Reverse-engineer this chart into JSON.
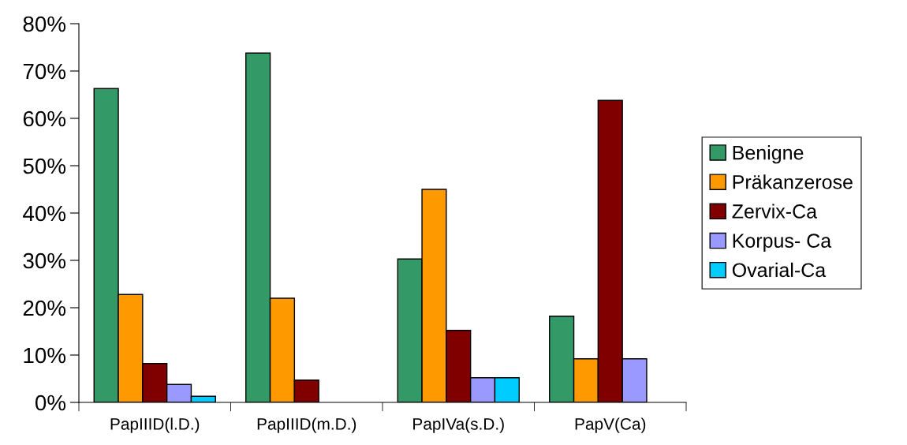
{
  "chart_data": {
    "type": "bar",
    "categories": [
      "PapIIID(l.D.)",
      "PapIIID(m.D.)",
      "PapIVa(s.D.)",
      "PapV(Ca)"
    ],
    "series": [
      {
        "name": "Benigne",
        "color": "#339966",
        "values": [
          66.3,
          73.8,
          30.3,
          18.2
        ]
      },
      {
        "name": "Präkanzerose",
        "color": "#ff9900",
        "values": [
          22.8,
          22.0,
          45.0,
          9.2
        ]
      },
      {
        "name": "Zervix-Ca",
        "color": "#800000",
        "values": [
          8.2,
          4.7,
          15.2,
          63.8
        ]
      },
      {
        "name": "Korpus- Ca",
        "color": "#9999ff",
        "values": [
          3.8,
          0,
          5.2,
          9.2
        ]
      },
      {
        "name": "Ovarial-Ca",
        "color": "#00ccff",
        "values": [
          1.3,
          0,
          5.2,
          0
        ]
      }
    ],
    "ylim": [
      0,
      80
    ],
    "yticks": [
      {
        "value": 0,
        "label": "0%"
      },
      {
        "value": 10,
        "label": "10%"
      },
      {
        "value": 20,
        "label": "20%"
      },
      {
        "value": 30,
        "label": "30%"
      },
      {
        "value": 40,
        "label": "40%"
      },
      {
        "value": 50,
        "label": "50%"
      },
      {
        "value": 60,
        "label": "60%"
      },
      {
        "value": 70,
        "label": "70%"
      },
      {
        "value": 80,
        "label": "80%"
      }
    ],
    "grid": false,
    "legend": "right"
  }
}
